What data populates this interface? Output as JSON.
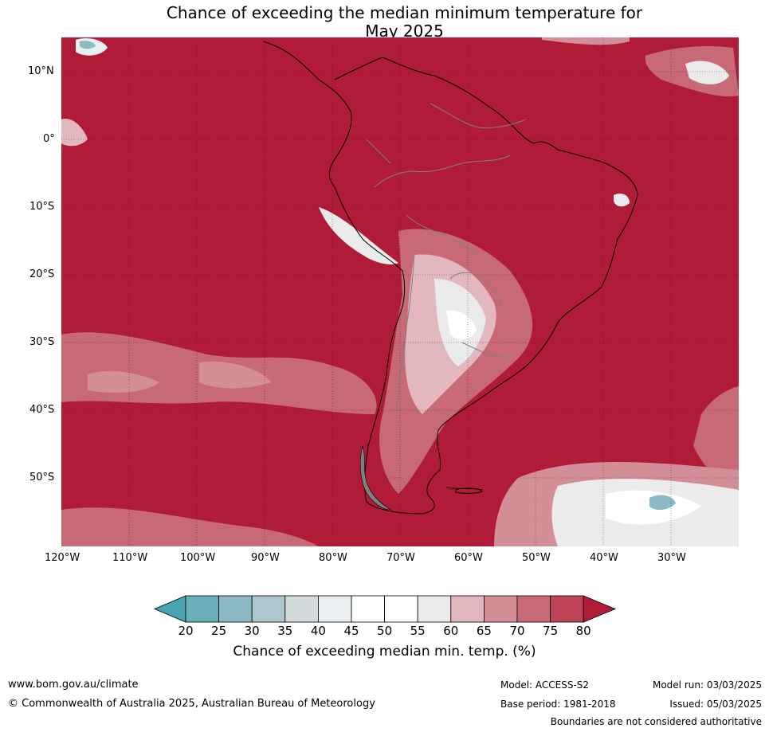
{
  "title_line1": "Chance of exceeding the median minimum temperature for",
  "title_line2": "May 2025",
  "lat_labels": [
    "10°N",
    "0°",
    "10°S",
    "20°S",
    "30°S",
    "40°S",
    "50°S"
  ],
  "lon_labels": [
    "120°W",
    "110°W",
    "100°W",
    "90°W",
    "80°W",
    "70°W",
    "60°W",
    "50°W",
    "40°W",
    "30°W"
  ],
  "colorbar": {
    "ticks": [
      "20",
      "25",
      "30",
      "35",
      "40",
      "45",
      "50",
      "55",
      "60",
      "65",
      "70",
      "75",
      "80"
    ],
    "colors": [
      "#4aa3b0",
      "#6aaebb",
      "#8cbac4",
      "#acc8ce",
      "#d3dadc",
      "#e9eff1",
      "#ffffff",
      "#ffffff",
      "#ebebec",
      "#e2b7bd",
      "#d48e97",
      "#c86a76",
      "#bd4354",
      "#b01c38"
    ],
    "label": "Chance of exceeding median min. temp. (%)"
  },
  "colors": {
    "ocean_dominant": "#b01c38",
    "coast": "#000000",
    "borders": "#808080"
  },
  "footer": {
    "url": "www.bom.gov.au/climate",
    "copyright": "© Commonwealth of Australia 2025, Australian Bureau of Meteorology",
    "model": "Model: ACCESS-S2",
    "base_period": "Base period: 1981-2018",
    "model_run": "Model run: 03/03/2025",
    "issued": "Issued: 05/03/2025",
    "disclaimer": "Boundaries are not considered authoritative"
  }
}
